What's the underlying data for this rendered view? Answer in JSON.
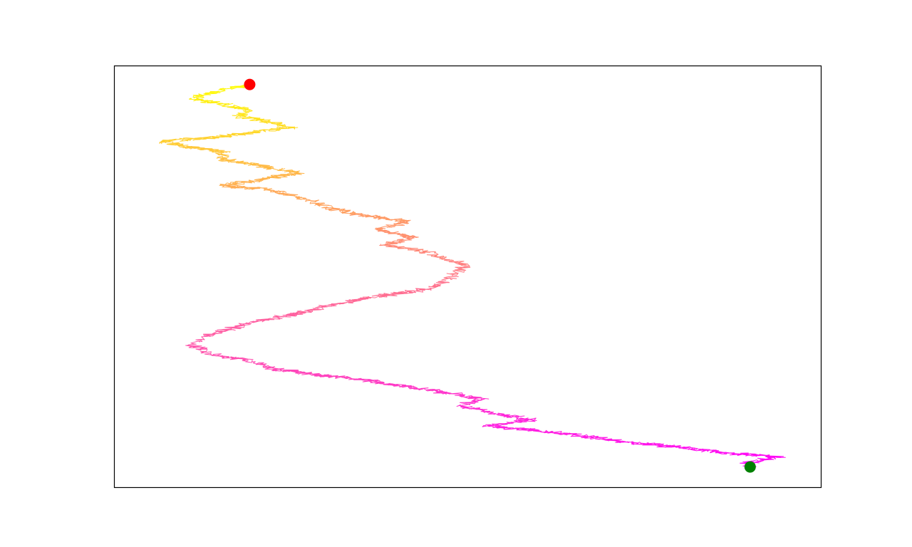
{
  "chart_data": {
    "type": "scatter",
    "title": "",
    "xlabel": "",
    "ylabel": "",
    "axes_visible": false,
    "grid": false,
    "legend": "none",
    "xlim": [
      0,
      1
    ],
    "ylim": [
      0,
      1
    ],
    "colormap": {
      "start": "#ffff00",
      "end": "#ff00ff",
      "name": "spring_r"
    },
    "start_marker": {
      "x": 0.192,
      "y": 0.955,
      "color": "#ff0000"
    },
    "end_marker": {
      "x": 0.9,
      "y": 0.048,
      "color": "#008000"
    },
    "path": [
      [
        0.192,
        0.955
      ],
      [
        0.165,
        0.946
      ],
      [
        0.135,
        0.934
      ],
      [
        0.11,
        0.922
      ],
      [
        0.158,
        0.907
      ],
      [
        0.192,
        0.895
      ],
      [
        0.175,
        0.88
      ],
      [
        0.21,
        0.87
      ],
      [
        0.25,
        0.853
      ],
      [
        0.195,
        0.841
      ],
      [
        0.14,
        0.83
      ],
      [
        0.07,
        0.82
      ],
      [
        0.1,
        0.808
      ],
      [
        0.16,
        0.794
      ],
      [
        0.145,
        0.78
      ],
      [
        0.2,
        0.765
      ],
      [
        0.26,
        0.745
      ],
      [
        0.21,
        0.73
      ],
      [
        0.155,
        0.715
      ],
      [
        0.22,
        0.705
      ],
      [
        0.27,
        0.683
      ],
      [
        0.305,
        0.662
      ],
      [
        0.34,
        0.648
      ],
      [
        0.415,
        0.63
      ],
      [
        0.375,
        0.61
      ],
      [
        0.425,
        0.593
      ],
      [
        0.385,
        0.575
      ],
      [
        0.44,
        0.558
      ],
      [
        0.475,
        0.54
      ],
      [
        0.5,
        0.525
      ],
      [
        0.48,
        0.505
      ],
      [
        0.47,
        0.49
      ],
      [
        0.445,
        0.47
      ],
      [
        0.36,
        0.45
      ],
      [
        0.31,
        0.433
      ],
      [
        0.26,
        0.413
      ],
      [
        0.2,
        0.393
      ],
      [
        0.13,
        0.36
      ],
      [
        0.11,
        0.335
      ],
      [
        0.14,
        0.315
      ],
      [
        0.19,
        0.3
      ],
      [
        0.23,
        0.28
      ],
      [
        0.28,
        0.268
      ],
      [
        0.34,
        0.258
      ],
      [
        0.39,
        0.245
      ],
      [
        0.455,
        0.228
      ],
      [
        0.52,
        0.21
      ],
      [
        0.49,
        0.192
      ],
      [
        0.54,
        0.175
      ],
      [
        0.59,
        0.16
      ],
      [
        0.53,
        0.145
      ],
      [
        0.65,
        0.125
      ],
      [
        0.72,
        0.107
      ],
      [
        0.8,
        0.095
      ],
      [
        0.86,
        0.082
      ],
      [
        0.94,
        0.072
      ],
      [
        0.895,
        0.058
      ],
      [
        0.9,
        0.048
      ]
    ]
  }
}
